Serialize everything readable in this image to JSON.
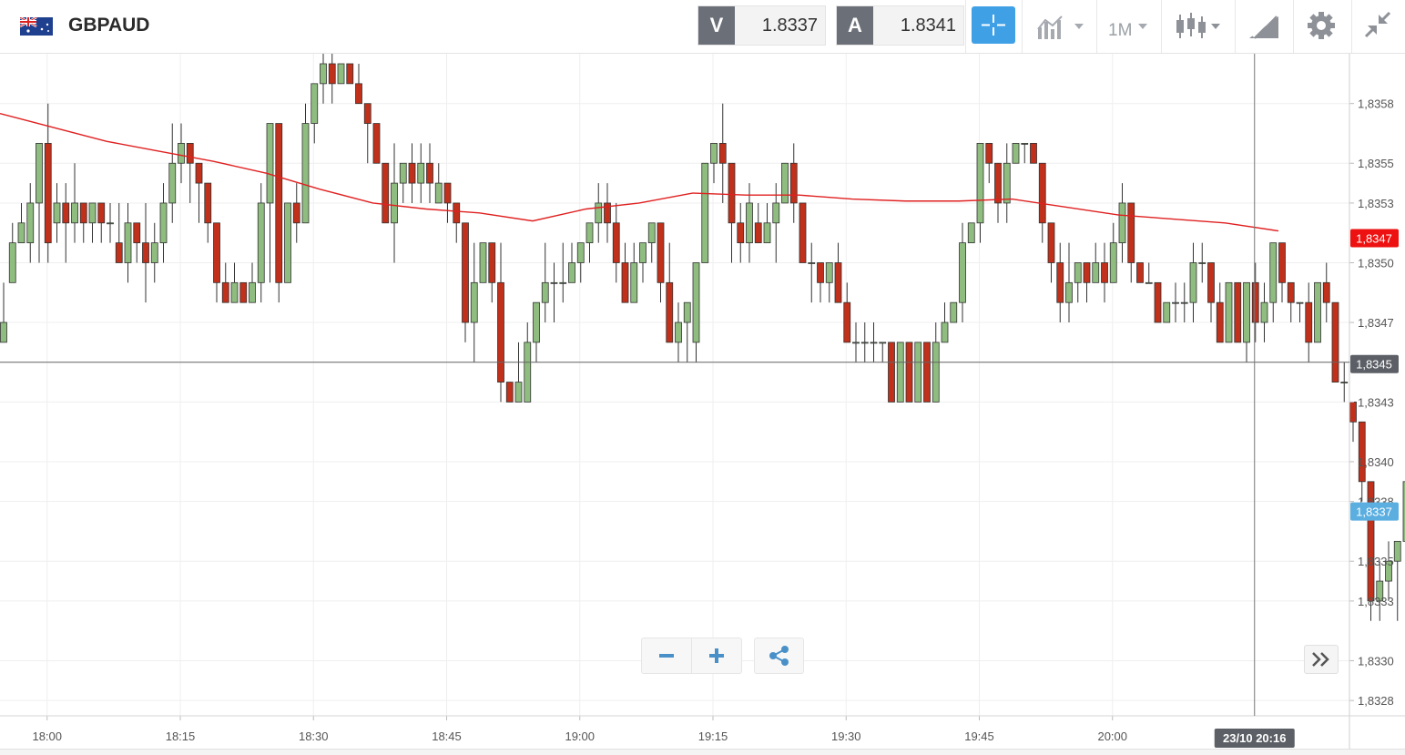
{
  "header": {
    "symbol": "GBPAUD",
    "sell": {
      "letter": "V",
      "price": "1.8337"
    },
    "buy": {
      "letter": "A",
      "price": "1.8341"
    },
    "timeframe": "1M"
  },
  "colors": {
    "up_candle": "#8fbc7f",
    "down_candle": "#c0301a",
    "ma_line": "#e02020",
    "accent": "#3fa0e6",
    "badge_red": "#ee1111",
    "badge_blue": "#5aaee0",
    "badge_dark": "#5c6066"
  },
  "icons": [
    "flag-gb-au-icon",
    "crosshair-icon",
    "line-chart-icon",
    "candlestick-icon",
    "drawing-tools-icon",
    "gear-icon",
    "collapse-icon",
    "minus-icon",
    "plus-icon",
    "share-icon",
    "double-chevron-right-icon"
  ],
  "chart_data": {
    "type": "candlestick",
    "title": "",
    "ylim": [
      1.8327,
      1.836
    ],
    "y_ticks": [
      "1,8358",
      "1,8355",
      "1,8353",
      "1,8350",
      "1,8347",
      "1,8345",
      "1,8343",
      "1,8340",
      "1,8338",
      "1,8335",
      "1,8333",
      "1,8330",
      "1,8328"
    ],
    "x_ticks": [
      "18:00",
      "18:15",
      "18:30",
      "18:45",
      "19:00",
      "19:15",
      "19:30",
      "19:45",
      "20:00"
    ],
    "moving_average_label": "1,8347",
    "current_price_label": "1,8337",
    "crosshair_price_label": "1,8345",
    "crosshair_price": 1.8345,
    "crosshair_time_label": "23/10 20:16",
    "series": [
      {
        "name": "",
        "ohlc": [
          [
            1.8346,
            1.8347,
            1.8349,
            1.8346
          ],
          [
            1.8349,
            1.8351,
            1.8352,
            1.8349
          ],
          [
            1.8351,
            1.8352,
            1.8353,
            1.8351
          ],
          [
            1.8351,
            1.8353,
            1.8354,
            1.835
          ],
          [
            1.8353,
            1.8356,
            1.8356,
            1.835
          ],
          [
            1.8356,
            1.8351,
            1.8358,
            1.835
          ],
          [
            1.8352,
            1.8353,
            1.8354,
            1.8351
          ],
          [
            1.8353,
            1.8352,
            1.8354,
            1.835
          ],
          [
            1.8352,
            1.8353,
            1.8355,
            1.8351
          ],
          [
            1.8353,
            1.8352,
            1.8353,
            1.8351
          ],
          [
            1.8352,
            1.8353,
            1.8353,
            1.8351
          ],
          [
            1.8353,
            1.8352,
            1.8353,
            1.8351
          ],
          [
            1.8352,
            1.8352,
            1.8353,
            1.8351
          ],
          [
            1.8351,
            1.835,
            1.8353,
            1.835
          ],
          [
            1.835,
            1.8352,
            1.8353,
            1.8349
          ],
          [
            1.8352,
            1.8351,
            1.8352,
            1.835
          ],
          [
            1.8351,
            1.835,
            1.8353,
            1.8348
          ],
          [
            1.835,
            1.8351,
            1.8352,
            1.8349
          ],
          [
            1.8351,
            1.8353,
            1.8354,
            1.835
          ],
          [
            1.8353,
            1.8355,
            1.8357,
            1.8352
          ],
          [
            1.8355,
            1.8356,
            1.8357,
            1.8354
          ],
          [
            1.8356,
            1.8355,
            1.8356,
            1.8353
          ],
          [
            1.8355,
            1.8354,
            1.8355,
            1.8352
          ],
          [
            1.8354,
            1.8352,
            1.8354,
            1.8351
          ],
          [
            1.8352,
            1.8349,
            1.8352,
            1.8348
          ],
          [
            1.8349,
            1.8348,
            1.835,
            1.8348
          ],
          [
            1.8348,
            1.8349,
            1.835,
            1.8348
          ],
          [
            1.8349,
            1.8348,
            1.8349,
            1.8348
          ],
          [
            1.8348,
            1.8349,
            1.835,
            1.8348
          ],
          [
            1.8349,
            1.8353,
            1.8354,
            1.8348
          ],
          [
            1.8353,
            1.8357,
            1.8357,
            1.8349
          ],
          [
            1.8357,
            1.8349,
            1.8357,
            1.8348
          ],
          [
            1.8349,
            1.8353,
            1.8353,
            1.8349
          ],
          [
            1.8353,
            1.8352,
            1.8354,
            1.8351
          ],
          [
            1.8352,
            1.8357,
            1.8358,
            1.8353
          ],
          [
            1.8357,
            1.8359,
            1.8359,
            1.8356
          ],
          [
            1.8359,
            1.836,
            1.8361,
            1.8358
          ],
          [
            1.836,
            1.8359,
            1.8361,
            1.8358
          ],
          [
            1.8359,
            1.836,
            1.836,
            1.8359
          ],
          [
            1.836,
            1.8359,
            1.836,
            1.8359
          ],
          [
            1.8359,
            1.8358,
            1.836,
            1.8358
          ],
          [
            1.8358,
            1.8357,
            1.8358,
            1.8355
          ],
          [
            1.8357,
            1.8355,
            1.8357,
            1.8355
          ],
          [
            1.8355,
            1.8352,
            1.8355,
            1.8352
          ],
          [
            1.8352,
            1.8354,
            1.8356,
            1.835
          ],
          [
            1.8354,
            1.8355,
            1.8355,
            1.8353
          ],
          [
            1.8355,
            1.8354,
            1.8356,
            1.8353
          ],
          [
            1.8354,
            1.8355,
            1.8356,
            1.8353
          ],
          [
            1.8355,
            1.8354,
            1.8356,
            1.8353
          ],
          [
            1.8353,
            1.8354,
            1.8355,
            1.8353
          ],
          [
            1.8354,
            1.8353,
            1.8354,
            1.8352
          ],
          [
            1.8353,
            1.8352,
            1.8353,
            1.8351
          ],
          [
            1.8352,
            1.8347,
            1.8352,
            1.8346
          ],
          [
            1.8347,
            1.8349,
            1.8351,
            1.8345
          ],
          [
            1.8349,
            1.8351,
            1.8351,
            1.8349
          ],
          [
            1.8351,
            1.8349,
            1.8351,
            1.8348
          ],
          [
            1.8349,
            1.8344,
            1.8351,
            1.8343
          ],
          [
            1.8344,
            1.8343,
            1.8344,
            1.8343
          ],
          [
            1.8343,
            1.8344,
            1.8346,
            1.8343
          ],
          [
            1.8343,
            1.8346,
            1.8347,
            1.8343
          ],
          [
            1.8346,
            1.8348,
            1.8348,
            1.8345
          ],
          [
            1.8348,
            1.8349,
            1.8351,
            1.8347
          ],
          [
            1.8349,
            1.8349,
            1.835,
            1.8347
          ],
          [
            1.8349,
            1.8349,
            1.8351,
            1.8348
          ],
          [
            1.8349,
            1.835,
            1.8351,
            1.8349
          ],
          [
            1.835,
            1.8351,
            1.8351,
            1.8349
          ],
          [
            1.8351,
            1.8352,
            1.8352,
            1.835
          ],
          [
            1.8352,
            1.8353,
            1.8354,
            1.8351
          ],
          [
            1.8353,
            1.8352,
            1.8354,
            1.8351
          ],
          [
            1.8352,
            1.835,
            1.8353,
            1.8349
          ],
          [
            1.835,
            1.8348,
            1.8351,
            1.8348
          ],
          [
            1.8348,
            1.835,
            1.8351,
            1.8348
          ],
          [
            1.835,
            1.8351,
            1.8351,
            1.8349
          ],
          [
            1.8351,
            1.8352,
            1.8352,
            1.835
          ],
          [
            1.8352,
            1.8349,
            1.8352,
            1.8348
          ],
          [
            1.8349,
            1.8346,
            1.8351,
            1.8346
          ],
          [
            1.8346,
            1.8347,
            1.8348,
            1.8345
          ],
          [
            1.8347,
            1.8348,
            1.8348,
            1.8345
          ],
          [
            1.8346,
            1.835,
            1.835,
            1.8345
          ],
          [
            1.835,
            1.8355,
            1.8355,
            1.835
          ],
          [
            1.8355,
            1.8356,
            1.8356,
            1.8354
          ],
          [
            1.8356,
            1.8355,
            1.8358,
            1.8353
          ],
          [
            1.8355,
            1.8352,
            1.8355,
            1.835
          ],
          [
            1.8352,
            1.8351,
            1.8353,
            1.835
          ],
          [
            1.8351,
            1.8353,
            1.8354,
            1.835
          ],
          [
            1.8352,
            1.8351,
            1.8353,
            1.8351
          ],
          [
            1.8351,
            1.8352,
            1.8353,
            1.8351
          ],
          [
            1.8352,
            1.8353,
            1.8354,
            1.835
          ],
          [
            1.8353,
            1.8355,
            1.8355,
            1.8353
          ],
          [
            1.8355,
            1.8353,
            1.8356,
            1.8352
          ],
          [
            1.8353,
            1.835,
            1.8353,
            1.835
          ],
          [
            1.835,
            1.835,
            1.8351,
            1.8348
          ],
          [
            1.835,
            1.8349,
            1.835,
            1.8348
          ],
          [
            1.8349,
            1.835,
            1.835,
            1.8348
          ],
          [
            1.835,
            1.8348,
            1.8351,
            1.8348
          ],
          [
            1.8348,
            1.8346,
            1.8349,
            1.8346
          ],
          [
            1.8346,
            1.8346,
            1.8347,
            1.8345
          ],
          [
            1.8346,
            1.8346,
            1.8347,
            1.8345
          ],
          [
            1.8346,
            1.8346,
            1.8347,
            1.8345
          ],
          [
            1.8346,
            1.8346,
            1.8346,
            1.8345
          ],
          [
            1.8346,
            1.8343,
            1.8346,
            1.8343
          ],
          [
            1.8343,
            1.8346,
            1.8346,
            1.8343
          ],
          [
            1.8346,
            1.8343,
            1.8346,
            1.8343
          ],
          [
            1.8343,
            1.8346,
            1.8346,
            1.8343
          ],
          [
            1.8346,
            1.8343,
            1.8346,
            1.8343
          ],
          [
            1.8343,
            1.8346,
            1.8347,
            1.8343
          ],
          [
            1.8346,
            1.8347,
            1.8348,
            1.8346
          ],
          [
            1.8347,
            1.8348,
            1.8348,
            1.8347
          ],
          [
            1.8348,
            1.8351,
            1.8352,
            1.8347
          ],
          [
            1.8351,
            1.8352,
            1.8352,
            1.8351
          ],
          [
            1.8352,
            1.8356,
            1.8356,
            1.8351
          ],
          [
            1.8356,
            1.8355,
            1.8356,
            1.8354
          ],
          [
            1.8355,
            1.8353,
            1.8355,
            1.8352
          ],
          [
            1.8353,
            1.8355,
            1.8356,
            1.8352
          ],
          [
            1.8355,
            1.8356,
            1.8356,
            1.8355
          ],
          [
            1.8356,
            1.8356,
            1.8356,
            1.8355
          ],
          [
            1.8356,
            1.8355,
            1.8356,
            1.8355
          ],
          [
            1.8355,
            1.8352,
            1.8355,
            1.8351
          ],
          [
            1.8352,
            1.835,
            1.8352,
            1.8349
          ],
          [
            1.835,
            1.8348,
            1.8351,
            1.8347
          ],
          [
            1.8348,
            1.8349,
            1.8351,
            1.8347
          ],
          [
            1.8349,
            1.835,
            1.835,
            1.8348
          ],
          [
            1.835,
            1.8349,
            1.835,
            1.8348
          ],
          [
            1.8349,
            1.835,
            1.8351,
            1.8349
          ],
          [
            1.835,
            1.8349,
            1.8351,
            1.8348
          ],
          [
            1.8349,
            1.8351,
            1.8352,
            1.8349
          ],
          [
            1.8351,
            1.8353,
            1.8354,
            1.835
          ],
          [
            1.8353,
            1.835,
            1.8353,
            1.8349
          ],
          [
            1.835,
            1.8349,
            1.835,
            1.8349
          ],
          [
            1.8349,
            1.8349,
            1.835,
            1.8349
          ],
          [
            1.8349,
            1.8347,
            1.8349,
            1.8347
          ],
          [
            1.8347,
            1.8348,
            1.8348,
            1.8347
          ],
          [
            1.8348,
            1.8348,
            1.8349,
            1.8347
          ],
          [
            1.8348,
            1.8348,
            1.8349,
            1.8347
          ],
          [
            1.8348,
            1.835,
            1.8351,
            1.8347
          ],
          [
            1.835,
            1.835,
            1.8351,
            1.8349
          ],
          [
            1.835,
            1.8348,
            1.835,
            1.8347
          ],
          [
            1.8348,
            1.8346,
            1.8349,
            1.8346
          ],
          [
            1.8346,
            1.8349,
            1.8349,
            1.8346
          ],
          [
            1.8349,
            1.8346,
            1.8349,
            1.8346
          ],
          [
            1.8346,
            1.8349,
            1.8349,
            1.8345
          ],
          [
            1.8349,
            1.8347,
            1.835,
            1.8346
          ],
          [
            1.8347,
            1.8348,
            1.8349,
            1.8346
          ],
          [
            1.8348,
            1.8351,
            1.8351,
            1.8347
          ],
          [
            1.8351,
            1.8349,
            1.8351,
            1.8348
          ],
          [
            1.8349,
            1.8348,
            1.8349,
            1.8347
          ],
          [
            1.8348,
            1.8348,
            1.8348,
            1.8347
          ],
          [
            1.8348,
            1.8346,
            1.8349,
            1.8345
          ],
          [
            1.8346,
            1.8349,
            1.8349,
            1.8346
          ],
          [
            1.8349,
            1.8348,
            1.835,
            1.8347
          ],
          [
            1.8348,
            1.8344,
            1.8348,
            1.8344
          ],
          [
            1.8344,
            1.8344,
            1.8345,
            1.8343
          ],
          [
            1.8343,
            1.8342,
            1.8343,
            1.8341
          ],
          [
            1.8342,
            1.8339,
            1.8342,
            1.8338
          ],
          [
            1.8339,
            1.8333,
            1.8339,
            1.8332
          ],
          [
            1.8333,
            1.8334,
            1.8335,
            1.8332
          ],
          [
            1.8334,
            1.8335,
            1.8336,
            1.8333
          ],
          [
            1.8335,
            1.8336,
            1.8336,
            1.8332
          ],
          [
            1.8336,
            1.8339,
            1.834,
            1.8336
          ],
          [
            1.8339,
            1.8339,
            1.834,
            1.8338
          ]
        ]
      }
    ],
    "moving_average": [
      1.83575,
      1.83568,
      1.83561,
      1.83556,
      1.83551,
      1.83545,
      1.83537,
      1.8353,
      1.83527,
      1.83525,
      1.83521,
      1.83527,
      1.8353,
      1.83535,
      1.83534,
      1.83534,
      1.83532,
      1.83531,
      1.83531,
      1.83532,
      1.83528,
      1.83524,
      1.83522,
      1.8352,
      1.83516
    ]
  }
}
